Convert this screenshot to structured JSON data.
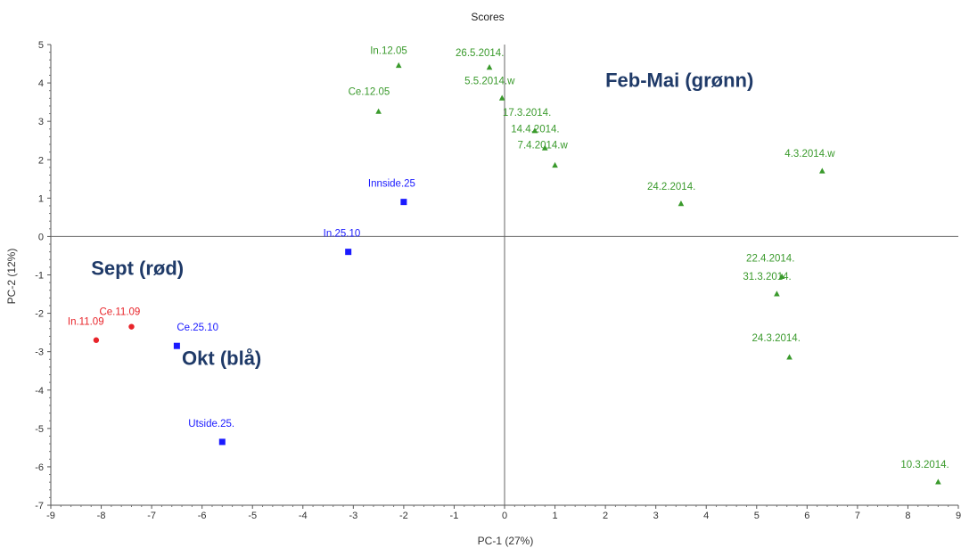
{
  "chart_data": {
    "type": "scatter",
    "title": "Scores",
    "xlabel": "PC-1 (27%)",
    "ylabel": "PC-2 (12%)",
    "xlim": [
      -9,
      9
    ],
    "ylim": [
      -7,
      5
    ],
    "x_ticks": [
      "-9",
      "-8",
      "-7",
      "-6",
      "-5",
      "-4",
      "-3",
      "-2",
      "-1",
      "0",
      "1",
      "2",
      "3",
      "4",
      "5",
      "6",
      "7",
      "8",
      "9"
    ],
    "y_ticks": [
      "5",
      "4",
      "3",
      "2",
      "1",
      "0",
      "-1",
      "-2",
      "-3",
      "-4",
      "-5",
      "-6",
      "-7"
    ],
    "colors": {
      "red": "#e8242a",
      "blue": "#1a1aff",
      "green": "#3a9a2c",
      "annotation": "#1f3a68"
    },
    "series": [
      {
        "color": "red",
        "marker": "circle",
        "points": [
          {
            "label": "In.11.09",
            "x": -8.1,
            "y": -2.7
          },
          {
            "label": "Ce.11.09",
            "x": -7.4,
            "y": -2.35
          }
        ]
      },
      {
        "color": "blue",
        "marker": "square",
        "points": [
          {
            "label": "Ce.25.10",
            "x": -6.5,
            "y": -2.85
          },
          {
            "label": "Utside.25.",
            "x": -5.6,
            "y": -5.35
          },
          {
            "label": "In.25.10",
            "x": -3.1,
            "y": -0.4
          },
          {
            "label": "Innside.25",
            "x": -2.0,
            "y": 0.9
          }
        ]
      },
      {
        "color": "green",
        "marker": "triangle",
        "points": [
          {
            "label": "In.12.05",
            "x": -2.1,
            "y": 4.45
          },
          {
            "label": "Ce.12.05",
            "x": -2.5,
            "y": 3.25
          },
          {
            "label": "26.5.2014.",
            "x": -0.3,
            "y": 4.4
          },
          {
            "label": "5.5.2014.w",
            "x": -0.05,
            "y": 3.6
          },
          {
            "label": "17.3.2014.",
            "x": 0.6,
            "y": 2.75
          },
          {
            "label": "14.4.2014.",
            "x": 0.8,
            "y": 2.3
          },
          {
            "label": "7.4.2014.w",
            "x": 1.0,
            "y": 1.85
          },
          {
            "label": "4.3.2014.w",
            "x": 6.3,
            "y": 1.7
          },
          {
            "label": "24.2.2014.",
            "x": 3.5,
            "y": 0.85
          },
          {
            "label": "22.4.2014.",
            "x": 5.5,
            "y": -1.05
          },
          {
            "label": "31.3.2014.",
            "x": 5.4,
            "y": -1.5
          },
          {
            "label": "24.3.2014.",
            "x": 5.65,
            "y": -3.15
          },
          {
            "label": "10.3.2014.",
            "x": 8.6,
            "y": -6.4
          }
        ]
      }
    ],
    "annotations": [
      {
        "text": "Feb-Mai (grønn)",
        "x": 2.0,
        "y": 3.9
      },
      {
        "text": "Sept (rød)",
        "x": -8.2,
        "y": -1.0
      },
      {
        "text": "Okt (blå)",
        "x": -6.4,
        "y": -3.35
      }
    ]
  }
}
